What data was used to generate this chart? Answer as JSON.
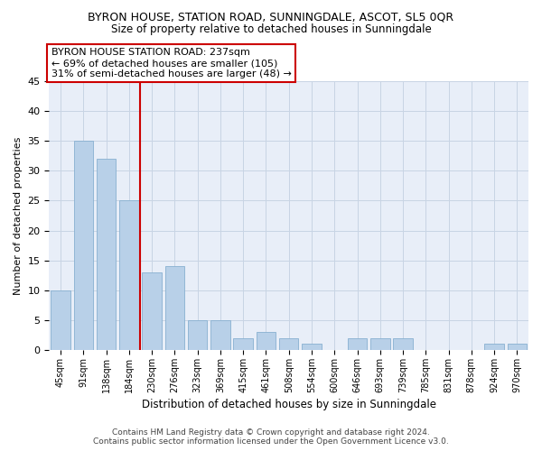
{
  "title": "BYRON HOUSE, STATION ROAD, SUNNINGDALE, ASCOT, SL5 0QR",
  "subtitle": "Size of property relative to detached houses in Sunningdale",
  "xlabel": "Distribution of detached houses by size in Sunningdale",
  "ylabel": "Number of detached properties",
  "categories": [
    "45sqm",
    "91sqm",
    "138sqm",
    "184sqm",
    "230sqm",
    "276sqm",
    "323sqm",
    "369sqm",
    "415sqm",
    "461sqm",
    "508sqm",
    "554sqm",
    "600sqm",
    "646sqm",
    "693sqm",
    "739sqm",
    "785sqm",
    "831sqm",
    "878sqm",
    "924sqm",
    "970sqm"
  ],
  "values": [
    10,
    35,
    32,
    25,
    13,
    14,
    5,
    5,
    2,
    3,
    2,
    1,
    0,
    2,
    2,
    2,
    0,
    0,
    0,
    1,
    1
  ],
  "bar_color": "#b8d0e8",
  "bar_edge_color": "#88b0d0",
  "vline_x": 3.5,
  "vline_color": "#cc0000",
  "annotation_title": "BYRON HOUSE STATION ROAD: 237sqm",
  "annotation_line1": "← 69% of detached houses are smaller (105)",
  "annotation_line2": "31% of semi-detached houses are larger (48) →",
  "annotation_box_facecolor": "#ffffff",
  "annotation_box_edgecolor": "#cc0000",
  "footer1": "Contains HM Land Registry data © Crown copyright and database right 2024.",
  "footer2": "Contains public sector information licensed under the Open Government Licence v3.0.",
  "ylim": [
    0,
    45
  ],
  "yticks": [
    0,
    5,
    10,
    15,
    20,
    25,
    30,
    35,
    40,
    45
  ],
  "grid_color": "#c8d4e4",
  "background_color": "#e8eef8",
  "title_fontsize": 9,
  "subtitle_fontsize": 8.5,
  "tick_fontsize": 7,
  "ylabel_fontsize": 8,
  "xlabel_fontsize": 8.5,
  "annotation_fontsize": 8,
  "footer_fontsize": 6.5
}
